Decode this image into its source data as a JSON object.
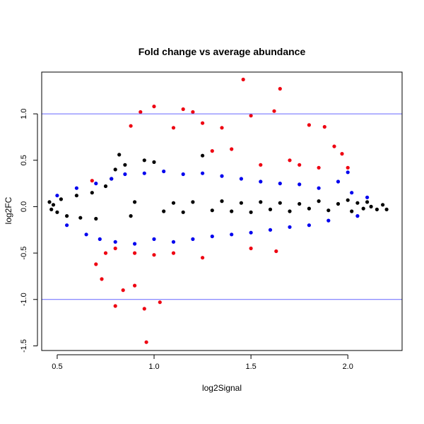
{
  "chart_data": {
    "type": "scatter",
    "title": "Fold change vs average abundance",
    "xlabel": "log2Signal",
    "ylabel": "log2FC",
    "xlim": [
      0.42,
      2.28
    ],
    "ylim": [
      -1.55,
      1.45
    ],
    "xticks": [
      0.5,
      1.0,
      1.5,
      2.0
    ],
    "xtick_labels": [
      "0.5",
      "1.0",
      "1.5",
      "2.0"
    ],
    "yticks": [
      -1.5,
      -1.0,
      -0.5,
      0.0,
      0.5,
      1.0
    ],
    "ytick_labels": [
      "-1.5",
      "-1.0",
      "-0.5",
      "0.0",
      "0.5",
      "1.0"
    ],
    "grid": false,
    "legend": false,
    "reference_lines": [
      {
        "axis": "y",
        "value": 1.0,
        "color": "#6666ff"
      },
      {
        "axis": "y",
        "value": -1.0,
        "color": "#6666ff"
      }
    ],
    "series": [
      {
        "color": "#000000",
        "description": "dense band of points near log2FC 0",
        "points": [
          [
            0.46,
            0.05
          ],
          [
            0.47,
            -0.03
          ],
          [
            0.48,
            0.02
          ],
          [
            0.5,
            -0.06
          ],
          [
            0.52,
            0.08
          ],
          [
            0.55,
            -0.1
          ],
          [
            0.6,
            0.12
          ],
          [
            0.62,
            -0.12
          ],
          [
            0.68,
            0.15
          ],
          [
            0.7,
            -0.13
          ],
          [
            0.75,
            0.22
          ],
          [
            0.78,
            0.3
          ],
          [
            0.8,
            0.4
          ],
          [
            0.82,
            0.56
          ],
          [
            0.85,
            0.45
          ],
          [
            0.88,
            -0.1
          ],
          [
            0.9,
            0.05
          ],
          [
            0.95,
            0.5
          ],
          [
            1.0,
            0.48
          ],
          [
            1.05,
            -0.05
          ],
          [
            1.1,
            0.04
          ],
          [
            1.15,
            -0.06
          ],
          [
            1.2,
            0.05
          ],
          [
            1.25,
            0.55
          ],
          [
            1.3,
            -0.04
          ],
          [
            1.35,
            0.06
          ],
          [
            1.4,
            -0.05
          ],
          [
            1.45,
            0.04
          ],
          [
            1.5,
            -0.06
          ],
          [
            1.55,
            0.05
          ],
          [
            1.6,
            -0.03
          ],
          [
            1.65,
            0.04
          ],
          [
            1.7,
            -0.05
          ],
          [
            1.75,
            0.03
          ],
          [
            1.8,
            -0.02
          ],
          [
            1.85,
            0.06
          ],
          [
            1.9,
            -0.04
          ],
          [
            1.95,
            0.03
          ],
          [
            2.0,
            0.07
          ],
          [
            2.02,
            -0.05
          ],
          [
            2.05,
            0.04
          ],
          [
            2.08,
            -0.02
          ],
          [
            2.1,
            0.05
          ],
          [
            2.12,
            0.0
          ],
          [
            2.15,
            -0.03
          ],
          [
            2.18,
            0.02
          ],
          [
            2.2,
            -0.03
          ]
        ]
      },
      {
        "color": "#0000ee",
        "description": "moderate fold change points spread around 0",
        "points": [
          [
            0.5,
            0.12
          ],
          [
            0.55,
            -0.2
          ],
          [
            0.6,
            0.2
          ],
          [
            0.65,
            -0.3
          ],
          [
            0.7,
            0.25
          ],
          [
            0.72,
            -0.35
          ],
          [
            0.78,
            0.3
          ],
          [
            0.8,
            -0.38
          ],
          [
            0.85,
            0.35
          ],
          [
            0.9,
            -0.4
          ],
          [
            0.95,
            0.36
          ],
          [
            1.0,
            -0.35
          ],
          [
            1.05,
            0.38
          ],
          [
            1.1,
            -0.38
          ],
          [
            1.15,
            0.35
          ],
          [
            1.2,
            -0.35
          ],
          [
            1.25,
            0.36
          ],
          [
            1.3,
            -0.32
          ],
          [
            1.35,
            0.33
          ],
          [
            1.4,
            -0.3
          ],
          [
            1.45,
            0.3
          ],
          [
            1.5,
            -0.28
          ],
          [
            1.55,
            0.27
          ],
          [
            1.6,
            -0.25
          ],
          [
            1.65,
            0.25
          ],
          [
            1.7,
            -0.22
          ],
          [
            1.75,
            0.24
          ],
          [
            1.8,
            -0.2
          ],
          [
            1.85,
            0.2
          ],
          [
            1.9,
            -0.15
          ],
          [
            1.95,
            0.27
          ],
          [
            2.0,
            0.37
          ],
          [
            2.02,
            0.15
          ],
          [
            2.05,
            -0.1
          ],
          [
            2.1,
            0.1
          ]
        ]
      },
      {
        "color": "#ee0011",
        "description": "high fold change points",
        "points": [
          [
            0.68,
            0.28
          ],
          [
            0.7,
            -0.62
          ],
          [
            0.73,
            -0.78
          ],
          [
            0.8,
            -1.07
          ],
          [
            0.84,
            -0.9
          ],
          [
            0.88,
            0.87
          ],
          [
            0.9,
            -0.85
          ],
          [
            0.93,
            1.02
          ],
          [
            0.95,
            -1.1
          ],
          [
            0.96,
            -1.46
          ],
          [
            1.0,
            1.08
          ],
          [
            1.03,
            -1.03
          ],
          [
            1.1,
            0.85
          ],
          [
            1.15,
            1.05
          ],
          [
            1.2,
            1.02
          ],
          [
            1.25,
            0.9
          ],
          [
            1.3,
            0.6
          ],
          [
            1.35,
            0.85
          ],
          [
            1.4,
            0.62
          ],
          [
            1.46,
            1.37
          ],
          [
            1.5,
            0.98
          ],
          [
            1.55,
            0.45
          ],
          [
            1.62,
            1.03
          ],
          [
            1.65,
            1.27
          ],
          [
            1.7,
            0.5
          ],
          [
            1.75,
            0.45
          ],
          [
            1.8,
            0.88
          ],
          [
            1.85,
            0.42
          ],
          [
            1.88,
            0.86
          ],
          [
            1.93,
            0.65
          ],
          [
            1.97,
            0.57
          ],
          [
            2.0,
            0.42
          ],
          [
            1.63,
            -0.48
          ],
          [
            1.5,
            -0.45
          ],
          [
            1.25,
            -0.55
          ],
          [
            1.1,
            -0.5
          ],
          [
            1.0,
            -0.52
          ],
          [
            0.9,
            -0.5
          ],
          [
            0.8,
            -0.45
          ],
          [
            0.75,
            -0.5
          ]
        ]
      }
    ]
  }
}
